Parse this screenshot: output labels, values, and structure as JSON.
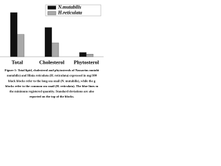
{
  "chart_data": {
    "type": "bar",
    "categories": [
      "Total",
      "Cholesterol",
      "Phytosterol"
    ],
    "series": [
      {
        "name": "N.mutabilis",
        "color": "#111111",
        "values": [
          83,
          55,
          8
        ]
      },
      {
        "name": "H.reticulata",
        "color": "#a9a9a9",
        "values": [
          42,
          26,
          5
        ]
      }
    ],
    "ylim": [
      0,
      100
    ],
    "legend": "top-right",
    "caption": [
      "Figure 1: Total lipid, cholesterol and phytosterols of Nassarius mutabi",
      "mutabilis) and Hinia reticulata (H. reticulata) expressed in mg/100",
      "black blocks refer to the long sea snail (N. mutabilis), while the g",
      "blocks refer to the common sea snail (H. reticulata). The blue lines m",
      "the minimum registered quantity. Standard deviations are also",
      "reported on the top of the blocks."
    ]
  }
}
